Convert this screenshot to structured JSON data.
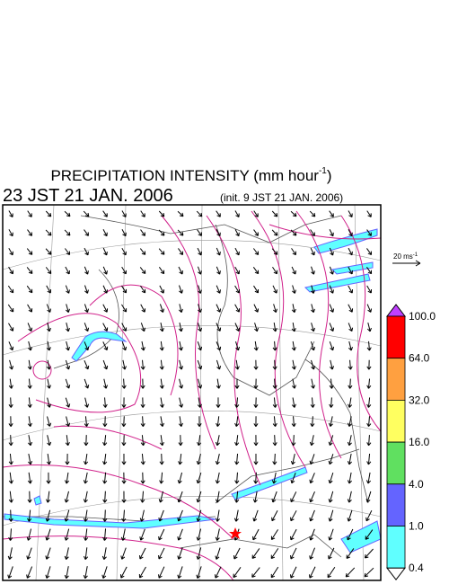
{
  "header": {
    "title": "PRECIPITATION INTENSITY (mm hour",
    "title_sup": "-1",
    "title_end": ")",
    "valid_time": "23 JST 21 JAN. 2006",
    "init_time": "(init. 9 JST 21 JAN. 2006)"
  },
  "reference_vector": {
    "label": "20 ms",
    "label_sup": "-1"
  },
  "colorbar": {
    "labels": [
      "100.0",
      "64.0",
      "32.0",
      "16.0",
      "4.0",
      "1.0",
      "0.4"
    ],
    "colors": [
      "#ff0000",
      "#ffa040",
      "#ffff60",
      "#60e060",
      "#6464ff",
      "#60ffff"
    ],
    "over_color": "#c040ff",
    "under_color": "#ffffff"
  }
}
